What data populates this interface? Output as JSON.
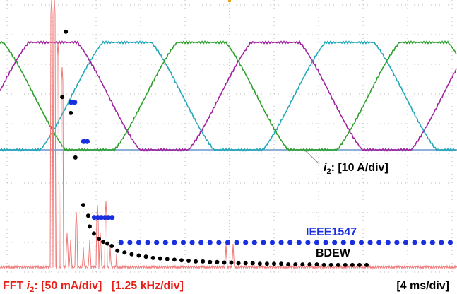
{
  "chart_data": {
    "type": "scatter",
    "xlim": [
      0,
      12.5
    ],
    "ylim": [
      0,
      450
    ],
    "annotations": {
      "current_symbol": "i",
      "current_subscript": "2",
      "current_scale": ": [10 A/div]",
      "fft_prefix": "FFT ",
      "fft_symbol": "i",
      "fft_subscript": "2",
      "fft_scale": ": [50 mA/div]   [1.25 kHz/div]",
      "time_scale": "[4 ms/div]"
    },
    "series": [
      {
        "name": "IEEE1547",
        "color": "#1a2fe0",
        "x": [
          1.8,
          1.9,
          2.15,
          2.25,
          2.45,
          2.55,
          2.65,
          2.75,
          2.85,
          2.95,
          3.2,
          3.45,
          3.7,
          3.95,
          4.2,
          4.45,
          4.7,
          4.95,
          5.2,
          5.45,
          5.7,
          5.95,
          6.2,
          6.45,
          6.7,
          6.95,
          7.2,
          7.45,
          7.7,
          7.95,
          8.2,
          8.45,
          8.7,
          8.95,
          9.2,
          9.45,
          9.7,
          9.95,
          10.2,
          10.45,
          10.7,
          10.95,
          11.2,
          11.45,
          11.7,
          11.95,
          12.2,
          12.45
        ],
        "values": [
          286,
          286,
          220,
          220,
          92,
          92,
          92,
          92,
          92,
          92,
          50,
          50,
          50,
          50,
          50,
          50,
          50,
          50,
          50,
          50,
          50,
          50,
          50,
          50,
          50,
          50,
          50,
          50,
          50,
          50,
          50,
          50,
          50,
          50,
          50,
          50,
          50,
          50,
          50,
          50,
          50,
          50,
          50,
          50,
          50,
          50,
          50,
          50
        ]
      },
      {
        "name": "BDEW",
        "color": "#000000",
        "x": [
          1.65,
          1.55,
          1.79,
          1.92,
          2.14,
          2.28,
          2.32,
          2.44,
          2.58,
          2.7,
          2.82,
          2.94,
          3.1,
          3.3,
          3.5,
          3.7,
          3.9,
          4.1,
          4.3,
          4.5,
          4.7,
          4.9,
          5.1,
          5.3,
          5.5,
          5.7,
          5.9,
          6.1,
          6.3,
          6.5,
          6.7,
          6.9,
          7.1,
          7.3,
          7.5,
          7.7,
          7.9,
          8.1,
          8.3,
          8.5,
          8.7,
          8.9,
          9.1,
          9.3,
          9.5,
          9.7,
          9.9,
          10.1
        ],
        "values": [
          405,
          295,
          268,
          193,
          113,
          95,
          77,
          65,
          56,
          51,
          48,
          44,
          36,
          33,
          30,
          28,
          26,
          24,
          23,
          22,
          21,
          20,
          19,
          18,
          18,
          17,
          17,
          16,
          16,
          15,
          15,
          15,
          14,
          14,
          14,
          14,
          13,
          13,
          13,
          13,
          13,
          12,
          12,
          12,
          12,
          12,
          12,
          12
        ]
      }
    ]
  }
}
